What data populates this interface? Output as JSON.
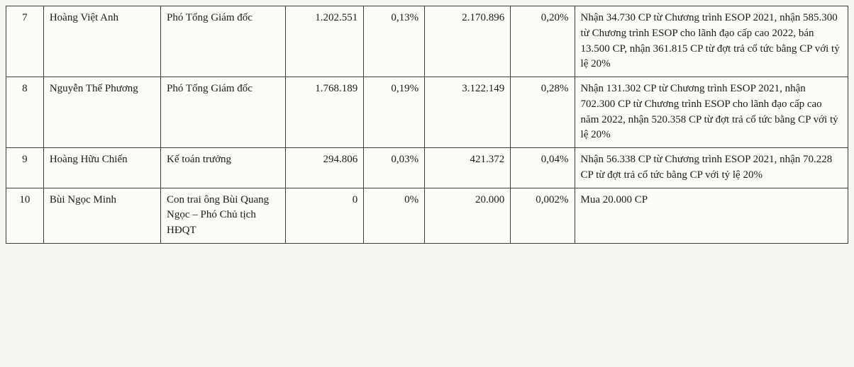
{
  "table": {
    "columns": [
      {
        "key": "stt",
        "class": "col-stt"
      },
      {
        "key": "name",
        "class": "col-name"
      },
      {
        "key": "position",
        "class": "col-pos"
      },
      {
        "key": "num1",
        "class": "col-n1"
      },
      {
        "key": "pct1",
        "class": "col-p1"
      },
      {
        "key": "num2",
        "class": "col-n2"
      },
      {
        "key": "pct2",
        "class": "col-p2"
      },
      {
        "key": "note",
        "class": "col-note"
      }
    ],
    "border_color": "#3a3a3a",
    "background_color": "#fcfbf8",
    "font_family": "Times New Roman",
    "font_size_pt": 11,
    "text_color": "#1a1a1a",
    "rows": [
      {
        "stt": "7",
        "name": "Hoàng Việt Anh",
        "position": "Phó Tổng Giám đốc",
        "num1": "1.202.551",
        "pct1": "0,13%",
        "num2": "2.170.896",
        "pct2": "0,20%",
        "note": "Nhận 34.730 CP từ Chương trình ESOP 2021, nhận 585.300 từ Chương trình ESOP cho lãnh đạo cấp cao 2022, bán 13.500 CP, nhận 361.815 CP từ đợt trả cổ tức bằng CP với tỷ lệ 20%"
      },
      {
        "stt": "8",
        "name": "Nguyễn Thế Phương",
        "position": "Phó Tổng Giám đốc",
        "num1": "1.768.189",
        "pct1": "0,19%",
        "num2": "3.122.149",
        "pct2": "0,28%",
        "note": "Nhận 131.302 CP từ Chương trình ESOP 2021, nhận 702.300 CP từ Chương trình ESOP cho lãnh đạo cấp cao năm 2022, nhận 520.358 CP từ đợt trả cổ tức bằng CP với tỷ lệ 20%"
      },
      {
        "stt": "9",
        "name": "Hoàng Hữu Chiến",
        "position": "Kế toán trưởng",
        "num1": "294.806",
        "pct1": "0,03%",
        "num2": "421.372",
        "pct2": "0,04%",
        "note": "Nhận 56.338 CP từ Chương trình ESOP 2021, nhận 70.228 CP từ đợt trả cổ tức bằng CP với tỷ lệ 20%"
      },
      {
        "stt": "10",
        "name": "Bùi Ngọc Minh",
        "position": "Con trai ông Bùi Quang Ngọc – Phó Chủ tịch HĐQT",
        "num1": "0",
        "pct1": "0%",
        "num2": "20.000",
        "pct2": "0,002%",
        "note": "Mua 20.000 CP"
      }
    ]
  }
}
